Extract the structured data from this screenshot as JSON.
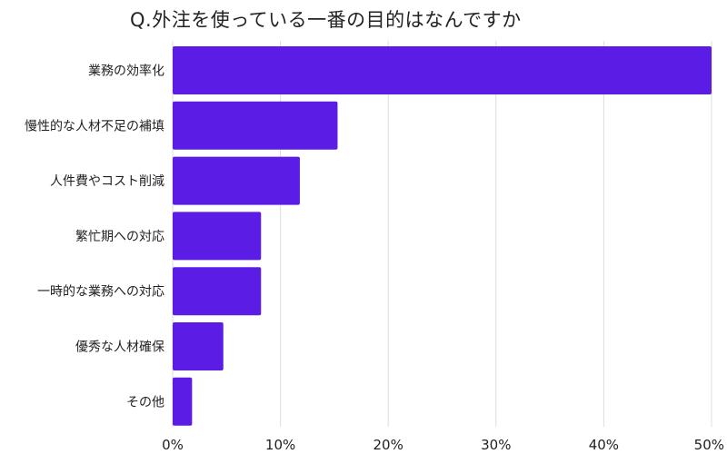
{
  "chart_data": {
    "type": "bar",
    "orientation": "horizontal",
    "title": "Q.外注を使っている一番の目的はなんですか",
    "categories": [
      "業務の効率化",
      "慢性的な人材不足の補填",
      "人件費やコスト削減",
      "繁忙期への対応",
      "一時的な業務への対応",
      "優秀な人材確保",
      "その他"
    ],
    "values": [
      50.0,
      15.3,
      11.8,
      8.2,
      8.2,
      4.7,
      1.8
    ],
    "xlim": [
      0,
      50
    ],
    "xticks": [
      0,
      10,
      20,
      30,
      40,
      50
    ],
    "xtick_labels": [
      "0%",
      "10%",
      "20%",
      "30%",
      "40%",
      "50%"
    ],
    "xlabel": "",
    "ylabel": "",
    "grid": true,
    "bar_color": "#5b1ce6",
    "grid_color": "#dddddd"
  }
}
